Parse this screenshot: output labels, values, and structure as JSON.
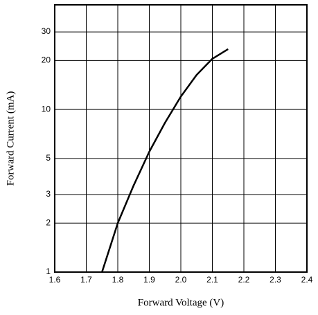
{
  "chart_data": {
    "type": "line",
    "xlabel": "Forward Voltage (V)",
    "ylabel": "Forward Current (mA)",
    "x": [
      1.75,
      1.8,
      1.85,
      1.9,
      1.95,
      2.0,
      2.05,
      2.1,
      2.15
    ],
    "series": [
      {
        "color": "#000000",
        "values": [
          1,
          2,
          3.4,
          5.5,
          8.3,
          12,
          16.3,
          20.5,
          23.5
        ]
      }
    ],
    "xlim": [
      1.6,
      2.4
    ],
    "xticks": [
      1.6,
      1.7,
      1.8,
      1.9,
      {
        "value": 2,
        "label": "2.0"
      },
      2.1,
      2.2,
      2.3,
      2.4
    ],
    "ylim": [
      1,
      44
    ],
    "yticks": [
      1,
      2,
      3,
      5,
      10,
      20,
      30
    ],
    "ylog": true,
    "grid": true
  }
}
